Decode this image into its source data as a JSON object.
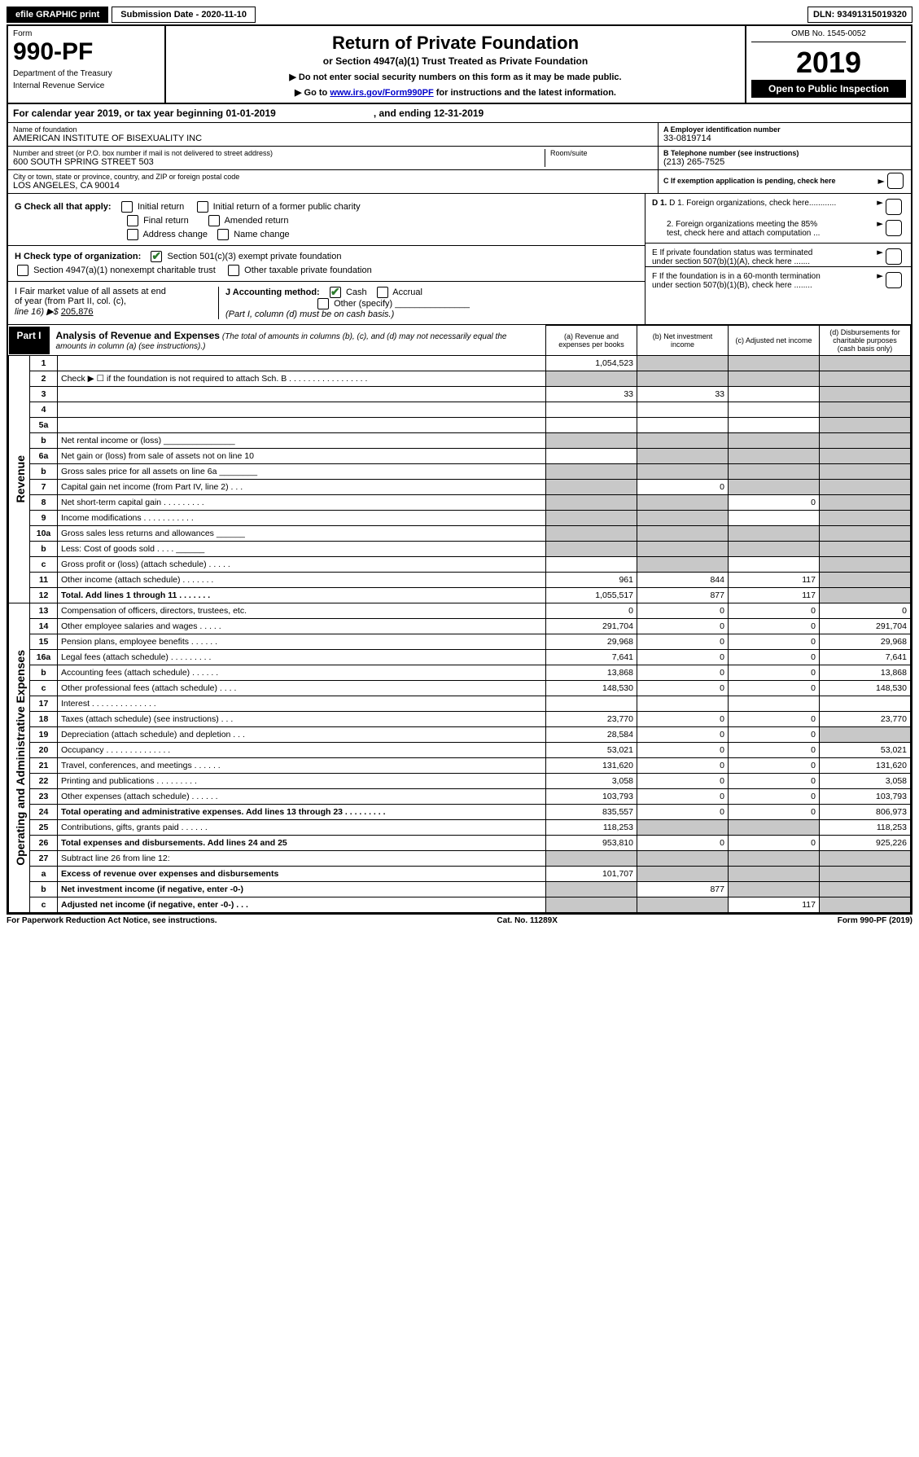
{
  "topbar": {
    "efile": "efile GRAPHIC print",
    "submission": "Submission Date - 2020-11-10",
    "dln": "DLN: 93491315019320"
  },
  "header": {
    "form_word": "Form",
    "form_num": "990-PF",
    "dept1": "Department of the Treasury",
    "dept2": "Internal Revenue Service",
    "title": "Return of Private Foundation",
    "subtitle": "or Section 4947(a)(1) Trust Treated as Private Foundation",
    "note1": "▶ Do not enter social security numbers on this form as it may be made public.",
    "note2_a": "▶ Go to ",
    "note2_link": "www.irs.gov/Form990PF",
    "note2_b": " for instructions and the latest information.",
    "omb": "OMB No. 1545-0052",
    "year": "2019",
    "open": "Open to Public Inspection"
  },
  "calyear": {
    "a": "For calendar year 2019, or tax year beginning 01-01-2019",
    "b": ", and ending 12-31-2019"
  },
  "entity": {
    "name_lbl": "Name of foundation",
    "name": "AMERICAN INSTITUTE OF BISEXUALITY INC",
    "street_lbl": "Number and street (or P.O. box number if mail is not delivered to street address)",
    "street": "600 SOUTH SPRING STREET 503",
    "room_lbl": "Room/suite",
    "city_lbl": "City or town, state or province, country, and ZIP or foreign postal code",
    "city": "LOS ANGELES, CA  90014",
    "ein_lbl": "A Employer identification number",
    "ein": "33-0819714",
    "phone_lbl": "B Telephone number (see instructions)",
    "phone": "(213) 265-7525",
    "c_lbl": "C If exemption application is pending, check here"
  },
  "checks": {
    "g_lbl": "G Check all that apply:",
    "g1": "Initial return",
    "g2": "Initial return of a former public charity",
    "g3": "Final return",
    "g4": "Amended return",
    "g5": "Address change",
    "g6": "Name change",
    "h_lbl": "H Check type of organization:",
    "h1": "Section 501(c)(3) exempt private foundation",
    "h2": "Section 4947(a)(1) nonexempt charitable trust",
    "h3": "Other taxable private foundation",
    "i_lbl1": "I Fair market value of all assets at end",
    "i_lbl2": "of year (from Part II, col. (c),",
    "i_lbl3": "line 16) ▶$",
    "i_val": "205,876",
    "j_lbl": "J Accounting method:",
    "j1": "Cash",
    "j2": "Accrual",
    "j3": "Other (specify)",
    "j_note": "(Part I, column (d) must be on cash basis.)",
    "d1": "D 1. Foreign organizations, check here............",
    "d2a": "2. Foreign organizations meeting the 85%",
    "d2b": "test, check here and attach computation ...",
    "e1": "E  If private foundation status was terminated",
    "e2": "under section 507(b)(1)(A), check here .......",
    "f1": "F  If the foundation is in a 60-month termination",
    "f2": "under section 507(b)(1)(B), check here ........"
  },
  "part1": {
    "tab": "Part I",
    "title": "Analysis of Revenue and Expenses",
    "sub": "(The total of amounts in columns (b), (c), and (d) may not necessarily equal the amounts in column (a) (see instructions).)",
    "col_a": "(a)   Revenue and expenses per books",
    "col_b": "(b)  Net investment income",
    "col_c": "(c)  Adjusted net income",
    "col_d": "(d)  Disbursements for charitable purposes (cash basis only)",
    "side_rev": "Revenue",
    "side_exp": "Operating and Administrative Expenses"
  },
  "rows": [
    {
      "n": "1",
      "d": "",
      "a": "1,054,523",
      "b": "",
      "c": "",
      "sb": true,
      "sc": true,
      "sd": true
    },
    {
      "n": "2",
      "d": "Check ▶ ☐ if the foundation is not required to attach Sch. B  .  .  .  .  .  .  .  .  .  .  .  .  .  .  .  .  .",
      "sa": true,
      "sb": true,
      "sc": true,
      "sd": true
    },
    {
      "n": "3",
      "d": "",
      "a": "33",
      "b": "33",
      "c": "",
      "sd": true
    },
    {
      "n": "4",
      "d": "",
      "a": "",
      "b": "",
      "c": "",
      "sd": true
    },
    {
      "n": "5a",
      "d": "",
      "a": "",
      "b": "",
      "c": "",
      "sd": true
    },
    {
      "n": "b",
      "d": "Net rental income or (loss)  _______________",
      "sa": true,
      "sb": true,
      "sc": true,
      "sd": true
    },
    {
      "n": "6a",
      "d": "Net gain or (loss) from sale of assets not on line 10",
      "a": "",
      "sb": true,
      "sc": true,
      "sd": true
    },
    {
      "n": "b",
      "d": "Gross sales price for all assets on line 6a ________",
      "sa": true,
      "sb": true,
      "sc": true,
      "sd": true
    },
    {
      "n": "7",
      "d": "Capital gain net income (from Part IV, line 2)   .   .   .",
      "sa": true,
      "b": "0",
      "sc": true,
      "sd": true
    },
    {
      "n": "8",
      "d": "Net short-term capital gain  .  .  .  .  .  .  .  .  .",
      "sa": true,
      "sb": true,
      "c": "0",
      "sd": true
    },
    {
      "n": "9",
      "d": "Income modifications  .  .  .  .  .  .  .  .  .  .  .",
      "sa": true,
      "sb": true,
      "c": "",
      "sd": true
    },
    {
      "n": "10a",
      "d": "Gross sales less returns and allowances  ______",
      "sa": true,
      "sb": true,
      "sc": true,
      "sd": true
    },
    {
      "n": "b",
      "d": "Less: Cost of goods sold   .   .   .   .  ______",
      "sa": true,
      "sb": true,
      "sc": true,
      "sd": true
    },
    {
      "n": "c",
      "d": "Gross profit or (loss) (attach schedule)   .   .   .   .   .",
      "a": "",
      "sb": true,
      "c": "",
      "sd": true
    },
    {
      "n": "11",
      "d": "Other income (attach schedule)   .   .   .   .   .   .   .",
      "a": "961",
      "b": "844",
      "c": "117",
      "sd": true
    },
    {
      "n": "12",
      "d": "Total. Add lines 1 through 11   .   .   .   .   .   .   .",
      "bold": true,
      "a": "1,055,517",
      "b": "877",
      "c": "117",
      "sd": true
    },
    {
      "n": "13",
      "d": "Compensation of officers, directors, trustees, etc.",
      "a": "0",
      "b": "0",
      "c": "0",
      "dd": "0"
    },
    {
      "n": "14",
      "d": "Other employee salaries and wages   .   .   .   .   .",
      "a": "291,704",
      "b": "0",
      "c": "0",
      "dd": "291,704"
    },
    {
      "n": "15",
      "d": "Pension plans, employee benefits   .   .   .   .   .   .",
      "a": "29,968",
      "b": "0",
      "c": "0",
      "dd": "29,968"
    },
    {
      "n": "16a",
      "d": "Legal fees (attach schedule) .   .   .   .   .   .   .   .   .",
      "a": "7,641",
      "b": "0",
      "c": "0",
      "dd": "7,641"
    },
    {
      "n": "b",
      "d": "Accounting fees (attach schedule)   .   .   .   .   .   .",
      "a": "13,868",
      "b": "0",
      "c": "0",
      "dd": "13,868"
    },
    {
      "n": "c",
      "d": "Other professional fees (attach schedule)   .   .   .   .",
      "a": "148,530",
      "b": "0",
      "c": "0",
      "dd": "148,530"
    },
    {
      "n": "17",
      "d": "Interest   .   .   .   .   .   .   .   .   .   .   .   .   .   .",
      "a": "",
      "b": "",
      "c": "",
      "dd": ""
    },
    {
      "n": "18",
      "d": "Taxes (attach schedule) (see instructions)   .   .   .",
      "a": "23,770",
      "b": "0",
      "c": "0",
      "dd": "23,770"
    },
    {
      "n": "19",
      "d": "Depreciation (attach schedule) and depletion   .   .   .",
      "a": "28,584",
      "b": "0",
      "c": "0",
      "sd": true
    },
    {
      "n": "20",
      "d": "Occupancy .   .   .   .   .   .   .   .   .   .   .   .   .   .",
      "a": "53,021",
      "b": "0",
      "c": "0",
      "dd": "53,021"
    },
    {
      "n": "21",
      "d": "Travel, conferences, and meetings  .   .   .   .   .   .",
      "a": "131,620",
      "b": "0",
      "c": "0",
      "dd": "131,620"
    },
    {
      "n": "22",
      "d": "Printing and publications .   .   .   .   .   .   .   .   .",
      "a": "3,058",
      "b": "0",
      "c": "0",
      "dd": "3,058"
    },
    {
      "n": "23",
      "d": "Other expenses (attach schedule)  .   .   .   .   .   .",
      "a": "103,793",
      "b": "0",
      "c": "0",
      "dd": "103,793"
    },
    {
      "n": "24",
      "d": "Total operating and administrative expenses. Add lines 13 through 23   .   .   .   .   .   .   .   .   .",
      "bold": true,
      "a": "835,557",
      "b": "0",
      "c": "0",
      "dd": "806,973"
    },
    {
      "n": "25",
      "d": "Contributions, gifts, grants paid   .   .   .   .   .   .",
      "a": "118,253",
      "sb": true,
      "sc": true,
      "dd": "118,253"
    },
    {
      "n": "26",
      "d": "Total expenses and disbursements. Add lines 24 and 25",
      "bold": true,
      "a": "953,810",
      "b": "0",
      "c": "0",
      "dd": "925,226"
    },
    {
      "n": "27",
      "d": "Subtract line 26 from line 12:",
      "sa": true,
      "sb": true,
      "sc": true,
      "sd": true
    },
    {
      "n": "a",
      "d": "Excess of revenue over expenses and disbursements",
      "bold": true,
      "a": "101,707",
      "sb": true,
      "sc": true,
      "sd": true
    },
    {
      "n": "b",
      "d": "Net investment income (if negative, enter -0-)",
      "bold": true,
      "sa": true,
      "b": "877",
      "sc": true,
      "sd": true
    },
    {
      "n": "c",
      "d": "Adjusted net income (if negative, enter -0-)   .   .   .",
      "bold": true,
      "sa": true,
      "sb": true,
      "c": "117",
      "sd": true
    }
  ],
  "footer": {
    "left": "For Paperwork Reduction Act Notice, see instructions.",
    "mid": "Cat. No. 11289X",
    "right": "Form 990-PF (2019)"
  }
}
